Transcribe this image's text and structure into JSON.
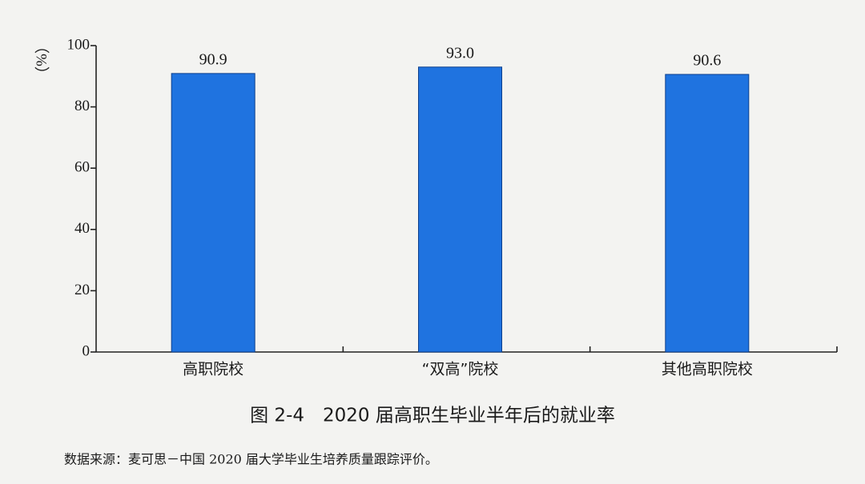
{
  "chart_data": {
    "type": "bar",
    "title": "图 2-4　2020 届高职生毕业半年后的就业率",
    "note": "数据来源：麦可思－中国 2020 届大学毕业生培养质量跟踪评价。",
    "y_label": "（%）",
    "categories": [
      "高职院校",
      "“双高”院校",
      "其他高职院校"
    ],
    "values": [
      90.9,
      93.0,
      90.6
    ],
    "value_labels": [
      "90.9",
      "93.0",
      "90.6"
    ],
    "color": "#1f73e0",
    "ylim": [
      0,
      100
    ],
    "yticks": [
      0,
      20,
      40,
      60,
      80,
      100
    ],
    "grid": false
  }
}
